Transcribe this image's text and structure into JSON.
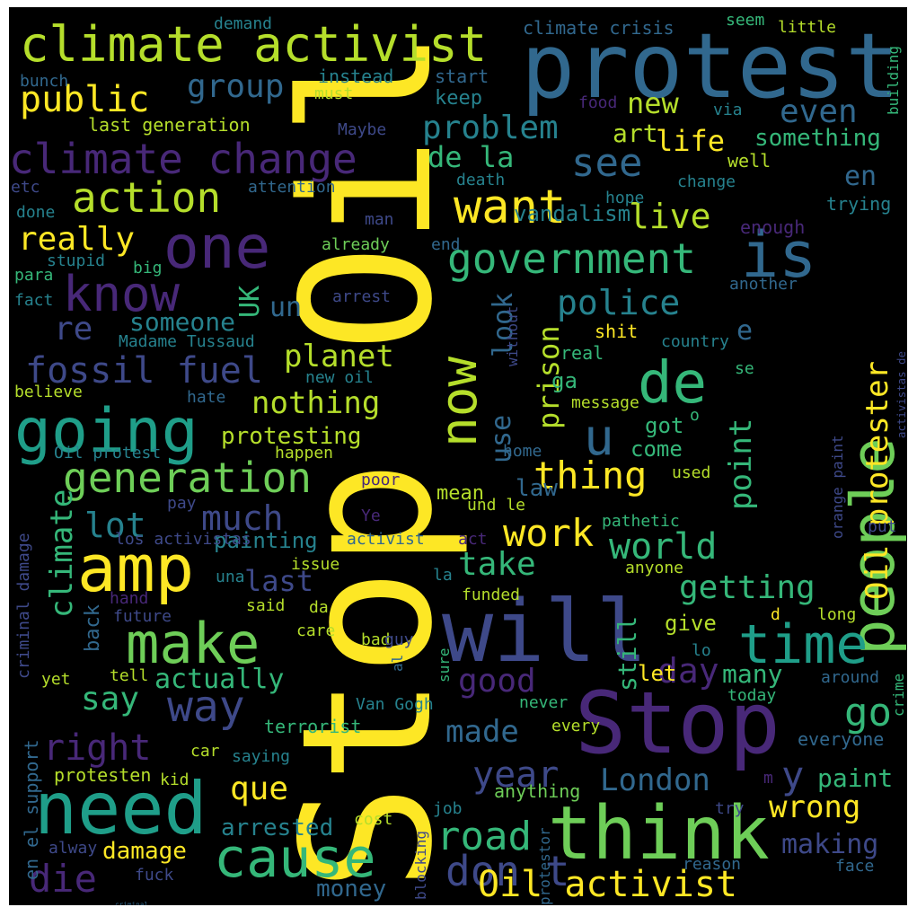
{
  "palette": {
    "yellow": "#fde725",
    "yellowgreen": "#b5de2b",
    "green": "#6ece58",
    "mint": "#35b779",
    "teal": "#1f9e89",
    "cyan": "#26828e",
    "blue": "#31688e",
    "indigo": "#3e4989",
    "violet": "#482878",
    "purple": "#440154"
  },
  "words": [
    {
      "text": "Stop Oil",
      "color": "#fde725"
    },
    {
      "text": "people",
      "color": "#6ece58"
    },
    {
      "text": "protest",
      "color": "#31688e"
    },
    {
      "text": "will",
      "color": "#3e4989"
    },
    {
      "text": "Stop",
      "color": "#482878"
    },
    {
      "text": "think",
      "color": "#6ece58"
    },
    {
      "text": "need",
      "color": "#1f9e89"
    },
    {
      "text": "amp",
      "color": "#fde725"
    },
    {
      "text": "one",
      "color": "#482878"
    },
    {
      "text": "going",
      "color": "#1f9e89"
    },
    {
      "text": "make",
      "color": "#6ece58"
    },
    {
      "text": "time",
      "color": "#1f9e89"
    },
    {
      "text": "cause",
      "color": "#35b779"
    },
    {
      "text": "climate activist",
      "color": "#b5de2b"
    },
    {
      "text": "is",
      "color": "#31688e"
    },
    {
      "text": "de",
      "color": "#35b779"
    },
    {
      "text": "climate change",
      "color": "#482878"
    },
    {
      "text": "now",
      "color": "#b5de2b"
    },
    {
      "text": "generation",
      "color": "#6ece58"
    },
    {
      "text": "government",
      "color": "#35b779"
    },
    {
      "text": "want",
      "color": "#fde725"
    },
    {
      "text": "know",
      "color": "#482878"
    },
    {
      "text": "action",
      "color": "#b5de2b"
    },
    {
      "text": "don t",
      "color": "#3e4989"
    },
    {
      "text": "road",
      "color": "#35b779"
    },
    {
      "text": "Oil activist",
      "color": "#fde725"
    },
    {
      "text": "die",
      "color": "#482878"
    },
    {
      "text": "way",
      "color": "#3e4989"
    },
    {
      "text": "fossil fuel",
      "color": "#3e4989"
    },
    {
      "text": "u",
      "color": "#31688e"
    },
    {
      "text": "thing",
      "color": "#fde725"
    },
    {
      "text": "Oil protester",
      "color": "#fde725"
    },
    {
      "text": "police",
      "color": "#26828e"
    },
    {
      "text": "go",
      "color": "#35b779"
    },
    {
      "text": "work",
      "color": "#fde725"
    },
    {
      "text": "world",
      "color": "#35b779"
    },
    {
      "text": "public",
      "color": "#fde725"
    },
    {
      "text": "group",
      "color": "#31688e"
    },
    {
      "text": "problem",
      "color": "#26828e"
    },
    {
      "text": "see",
      "color": "#31688e"
    },
    {
      "text": "really",
      "color": "#fde725"
    },
    {
      "text": "live",
      "color": "#b5de2b"
    },
    {
      "text": "re",
      "color": "#3e4989"
    },
    {
      "text": "someone",
      "color": "#26828e"
    },
    {
      "text": "planet",
      "color": "#b5de2b"
    },
    {
      "text": "nothing",
      "color": "#b5de2b"
    },
    {
      "text": "lot",
      "color": "#26828e"
    },
    {
      "text": "much",
      "color": "#3e4989"
    },
    {
      "text": "climate",
      "color": "#35b779"
    },
    {
      "text": "last",
      "color": "#3e4989"
    },
    {
      "text": "say",
      "color": "#35b779"
    },
    {
      "text": "actually",
      "color": "#35b779"
    },
    {
      "text": "right",
      "color": "#482878"
    },
    {
      "text": "made",
      "color": "#31688e"
    },
    {
      "text": "year",
      "color": "#3e4989"
    },
    {
      "text": "London",
      "color": "#31688e"
    },
    {
      "text": "wrong",
      "color": "#fde725"
    },
    {
      "text": "good",
      "color": "#482878"
    },
    {
      "text": "day",
      "color": "#482878"
    },
    {
      "text": "criminal",
      "color": "#31688e"
    },
    {
      "text": "que",
      "color": "#fde725"
    },
    {
      "text": "take",
      "color": "#35b779"
    },
    {
      "text": "getting",
      "color": "#35b779"
    },
    {
      "text": "point",
      "color": "#35b779"
    },
    {
      "text": "prison",
      "color": "#b5de2b"
    },
    {
      "text": "use",
      "color": "#31688e"
    },
    {
      "text": "look",
      "color": "#31688e"
    },
    {
      "text": "UK",
      "color": "#35b779"
    },
    {
      "text": "un",
      "color": "#31688e"
    },
    {
      "text": "even",
      "color": "#31688e"
    },
    {
      "text": "new",
      "color": "#b5de2b"
    },
    {
      "text": "life",
      "color": "#fde725"
    },
    {
      "text": "de la",
      "color": "#35b779"
    },
    {
      "text": "en",
      "color": "#31688e"
    },
    {
      "text": "something",
      "color": "#35b779"
    },
    {
      "text": "art",
      "color": "#b5de2b"
    },
    {
      "text": "e",
      "color": "#31688e"
    },
    {
      "text": "y",
      "color": "#3e4989"
    },
    {
      "text": "paint",
      "color": "#35b779"
    },
    {
      "text": "making",
      "color": "#3e4989"
    },
    {
      "text": "many",
      "color": "#35b779"
    },
    {
      "text": "still",
      "color": "#35b779"
    },
    {
      "text": "arrested",
      "color": "#26828e"
    },
    {
      "text": "damage",
      "color": "#fde725"
    },
    {
      "text": "money",
      "color": "#31688e"
    },
    {
      "text": "protesting",
      "color": "#b5de2b"
    },
    {
      "text": "vandalism",
      "color": "#26828e"
    },
    {
      "text": "ga",
      "color": "#35b779"
    },
    {
      "text": "got",
      "color": "#35b779"
    },
    {
      "text": "come",
      "color": "#35b779"
    },
    {
      "text": "law",
      "color": "#31688e"
    },
    {
      "text": "mean",
      "color": "#b5de2b"
    },
    {
      "text": "painting",
      "color": "#26828e"
    },
    {
      "text": "back",
      "color": "#31688e"
    },
    {
      "text": "keep",
      "color": "#26828e"
    },
    {
      "text": "give",
      "color": "#b5de2b"
    },
    {
      "text": "let",
      "color": "#fde725"
    },
    {
      "text": "shit",
      "color": "#fde725"
    },
    {
      "text": "real",
      "color": "#35b779"
    },
    {
      "text": "climate crisis",
      "color": "#31688e"
    },
    {
      "text": "seem",
      "color": "#35b779"
    },
    {
      "text": "little",
      "color": "#b5de2b"
    },
    {
      "text": "demand",
      "color": "#26828e"
    },
    {
      "text": "bunch",
      "color": "#31688e"
    },
    {
      "text": "instead",
      "color": "#26828e"
    },
    {
      "text": "start",
      "color": "#31688e"
    },
    {
      "text": "must",
      "color": "#b5de2b"
    },
    {
      "text": "last generation",
      "color": "#b5de2b"
    },
    {
      "text": "Maybe",
      "color": "#3e4989"
    },
    {
      "text": "food",
      "color": "#482878"
    },
    {
      "text": "via",
      "color": "#26828e"
    },
    {
      "text": "well",
      "color": "#b5de2b"
    },
    {
      "text": "change",
      "color": "#26828e"
    },
    {
      "text": "death",
      "color": "#26828e"
    },
    {
      "text": "hope",
      "color": "#26828e"
    },
    {
      "text": "trying",
      "color": "#26828e"
    },
    {
      "text": "enough",
      "color": "#482878"
    },
    {
      "text": "another",
      "color": "#31688e"
    },
    {
      "text": "etc",
      "color": "#3e4989"
    },
    {
      "text": "attention",
      "color": "#31688e"
    },
    {
      "text": "done",
      "color": "#26828e"
    },
    {
      "text": "man",
      "color": "#3e4989"
    },
    {
      "text": "already",
      "color": "#6ece58"
    },
    {
      "text": "end",
      "color": "#31688e"
    },
    {
      "text": "stupid",
      "color": "#26828e"
    },
    {
      "text": "big",
      "color": "#35b779"
    },
    {
      "text": "para",
      "color": "#35b779"
    },
    {
      "text": "fact",
      "color": "#26828e"
    },
    {
      "text": "arrest",
      "color": "#3e4989"
    },
    {
      "text": "without",
      "color": "#3e4989"
    },
    {
      "text": "Madame Tussaud",
      "color": "#26828e"
    },
    {
      "text": "country",
      "color": "#26828e"
    },
    {
      "text": "new oil",
      "color": "#26828e"
    },
    {
      "text": "se",
      "color": "#35b779"
    },
    {
      "text": "believe",
      "color": "#b5de2b"
    },
    {
      "text": "hate",
      "color": "#31688e"
    },
    {
      "text": "message",
      "color": "#b5de2b"
    },
    {
      "text": "o",
      "color": "#35b779"
    },
    {
      "text": "orange paint",
      "color": "#3e4989"
    },
    {
      "text": "activistas de",
      "color": "#3e4989"
    },
    {
      "text": "building",
      "color": "#35b779"
    },
    {
      "text": "Oil protest",
      "color": "#26828e"
    },
    {
      "text": "happen",
      "color": "#b5de2b"
    },
    {
      "text": "home",
      "color": "#31688e"
    },
    {
      "text": "used",
      "color": "#b5de2b"
    },
    {
      "text": "poor",
      "color": "#482878"
    },
    {
      "text": "criminal damage",
      "color": "#3e4989"
    },
    {
      "text": "pay",
      "color": "#3e4989"
    },
    {
      "text": "Ye",
      "color": "#482878"
    },
    {
      "text": "los activistas",
      "color": "#3e4989"
    },
    {
      "text": "activist",
      "color": "#31688e"
    },
    {
      "text": "act",
      "color": "#482878"
    },
    {
      "text": "und le",
      "color": "#b5de2b"
    },
    {
      "text": "pathetic",
      "color": "#35b779"
    },
    {
      "text": "put",
      "color": "#3e4989"
    },
    {
      "text": "una",
      "color": "#26828e"
    },
    {
      "text": "issue",
      "color": "#b5de2b"
    },
    {
      "text": "anyone",
      "color": "#b5de2b"
    },
    {
      "text": "la",
      "color": "#26828e"
    },
    {
      "text": "hand",
      "color": "#482878"
    },
    {
      "text": "said",
      "color": "#b5de2b"
    },
    {
      "text": "da",
      "color": "#b5de2b"
    },
    {
      "text": "funded",
      "color": "#b5de2b"
    },
    {
      "text": "future",
      "color": "#3e4989"
    },
    {
      "text": "care",
      "color": "#b5de2b"
    },
    {
      "text": "d",
      "color": "#fde725"
    },
    {
      "text": "long",
      "color": "#b5de2b"
    },
    {
      "text": "al",
      "color": "#31688e"
    },
    {
      "text": "bad",
      "color": "#b5de2b"
    },
    {
      "text": "guy",
      "color": "#3e4989"
    },
    {
      "text": "sure",
      "color": "#35b779"
    },
    {
      "text": "lo",
      "color": "#26828e"
    },
    {
      "text": "yet",
      "color": "#b5de2b"
    },
    {
      "text": "tell",
      "color": "#b5de2b"
    },
    {
      "text": "Van Gogh",
      "color": "#26828e"
    },
    {
      "text": "never",
      "color": "#35b779"
    },
    {
      "text": "today",
      "color": "#35b779"
    },
    {
      "text": "around",
      "color": "#31688e"
    },
    {
      "text": "crime",
      "color": "#35b779"
    },
    {
      "text": "terrorist",
      "color": "#35b779"
    },
    {
      "text": "every",
      "color": "#b5de2b"
    },
    {
      "text": "en el support",
      "color": "#31688e"
    },
    {
      "text": "car",
      "color": "#b5de2b"
    },
    {
      "text": "saying",
      "color": "#26828e"
    },
    {
      "text": "everyone",
      "color": "#31688e"
    },
    {
      "text": "protesten",
      "color": "#b5de2b"
    },
    {
      "text": "kid",
      "color": "#b5de2b"
    },
    {
      "text": "m",
      "color": "#482878"
    },
    {
      "text": "anything",
      "color": "#6ece58"
    },
    {
      "text": "try",
      "color": "#3e4989"
    },
    {
      "text": "job",
      "color": "#26828e"
    },
    {
      "text": "cost",
      "color": "#b5de2b"
    },
    {
      "text": "alway",
      "color": "#3e4989"
    },
    {
      "text": "blocking",
      "color": "#3e4989"
    },
    {
      "text": "protestor",
      "color": "#31688e"
    },
    {
      "text": "fuck",
      "color": "#3e4989"
    },
    {
      "text": "reason",
      "color": "#31688e"
    },
    {
      "text": "face",
      "color": "#31688e"
    }
  ]
}
